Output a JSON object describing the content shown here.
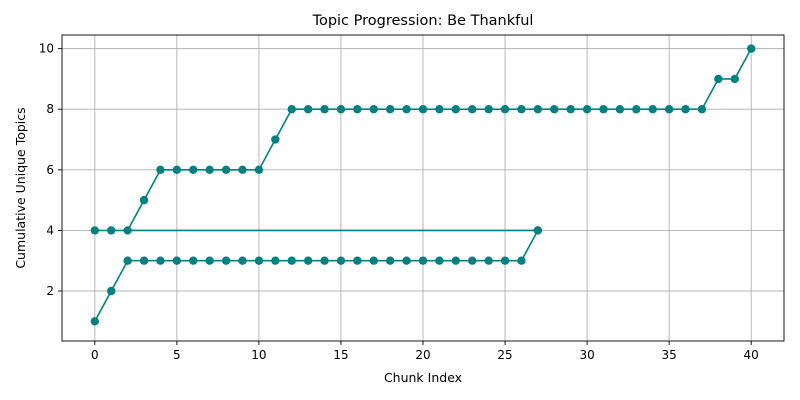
{
  "chart_data": {
    "type": "line",
    "title": "Topic Progression: Be Thankful",
    "xlabel": "Chunk Index",
    "ylabel": "Cumulative Unique Topics",
    "xlim": [
      -2,
      42
    ],
    "ylim": [
      0.35,
      10.45
    ],
    "xticks": [
      0,
      5,
      10,
      15,
      20,
      25,
      30,
      35,
      40
    ],
    "yticks": [
      2,
      4,
      6,
      8,
      10
    ],
    "grid": true,
    "legend": "none",
    "color": "#008080",
    "marker": "circle",
    "series": [
      {
        "x": [
          0,
          1,
          2,
          3,
          4,
          5,
          6,
          7,
          8,
          9,
          10,
          11,
          12,
          13,
          14,
          15,
          16,
          17,
          18,
          19,
          20,
          21,
          22,
          23,
          24,
          25,
          26,
          27
        ],
        "values": [
          1,
          2,
          3,
          3,
          3,
          3,
          3,
          3,
          3,
          3,
          3,
          3,
          3,
          3,
          3,
          3,
          3,
          3,
          3,
          3,
          3,
          3,
          3,
          3,
          3,
          3,
          3,
          4
        ]
      },
      {
        "x": [
          27,
          0,
          1,
          2,
          3,
          4,
          5,
          6,
          7,
          8,
          9,
          10,
          11,
          12,
          13,
          14,
          15,
          16,
          17,
          18,
          19,
          20,
          21,
          22,
          23,
          24,
          25,
          26,
          27,
          28,
          29,
          30,
          31,
          32,
          33,
          34,
          35,
          36,
          37,
          38,
          39,
          40
        ],
        "values": [
          4,
          4,
          4,
          4,
          5,
          6,
          6,
          6,
          6,
          6,
          6,
          6,
          7,
          8,
          8,
          8,
          8,
          8,
          8,
          8,
          8,
          8,
          8,
          8,
          8,
          8,
          8,
          8,
          8,
          8,
          8,
          8,
          8,
          8,
          8,
          8,
          8,
          8,
          8,
          9,
          9,
          10
        ]
      }
    ]
  }
}
